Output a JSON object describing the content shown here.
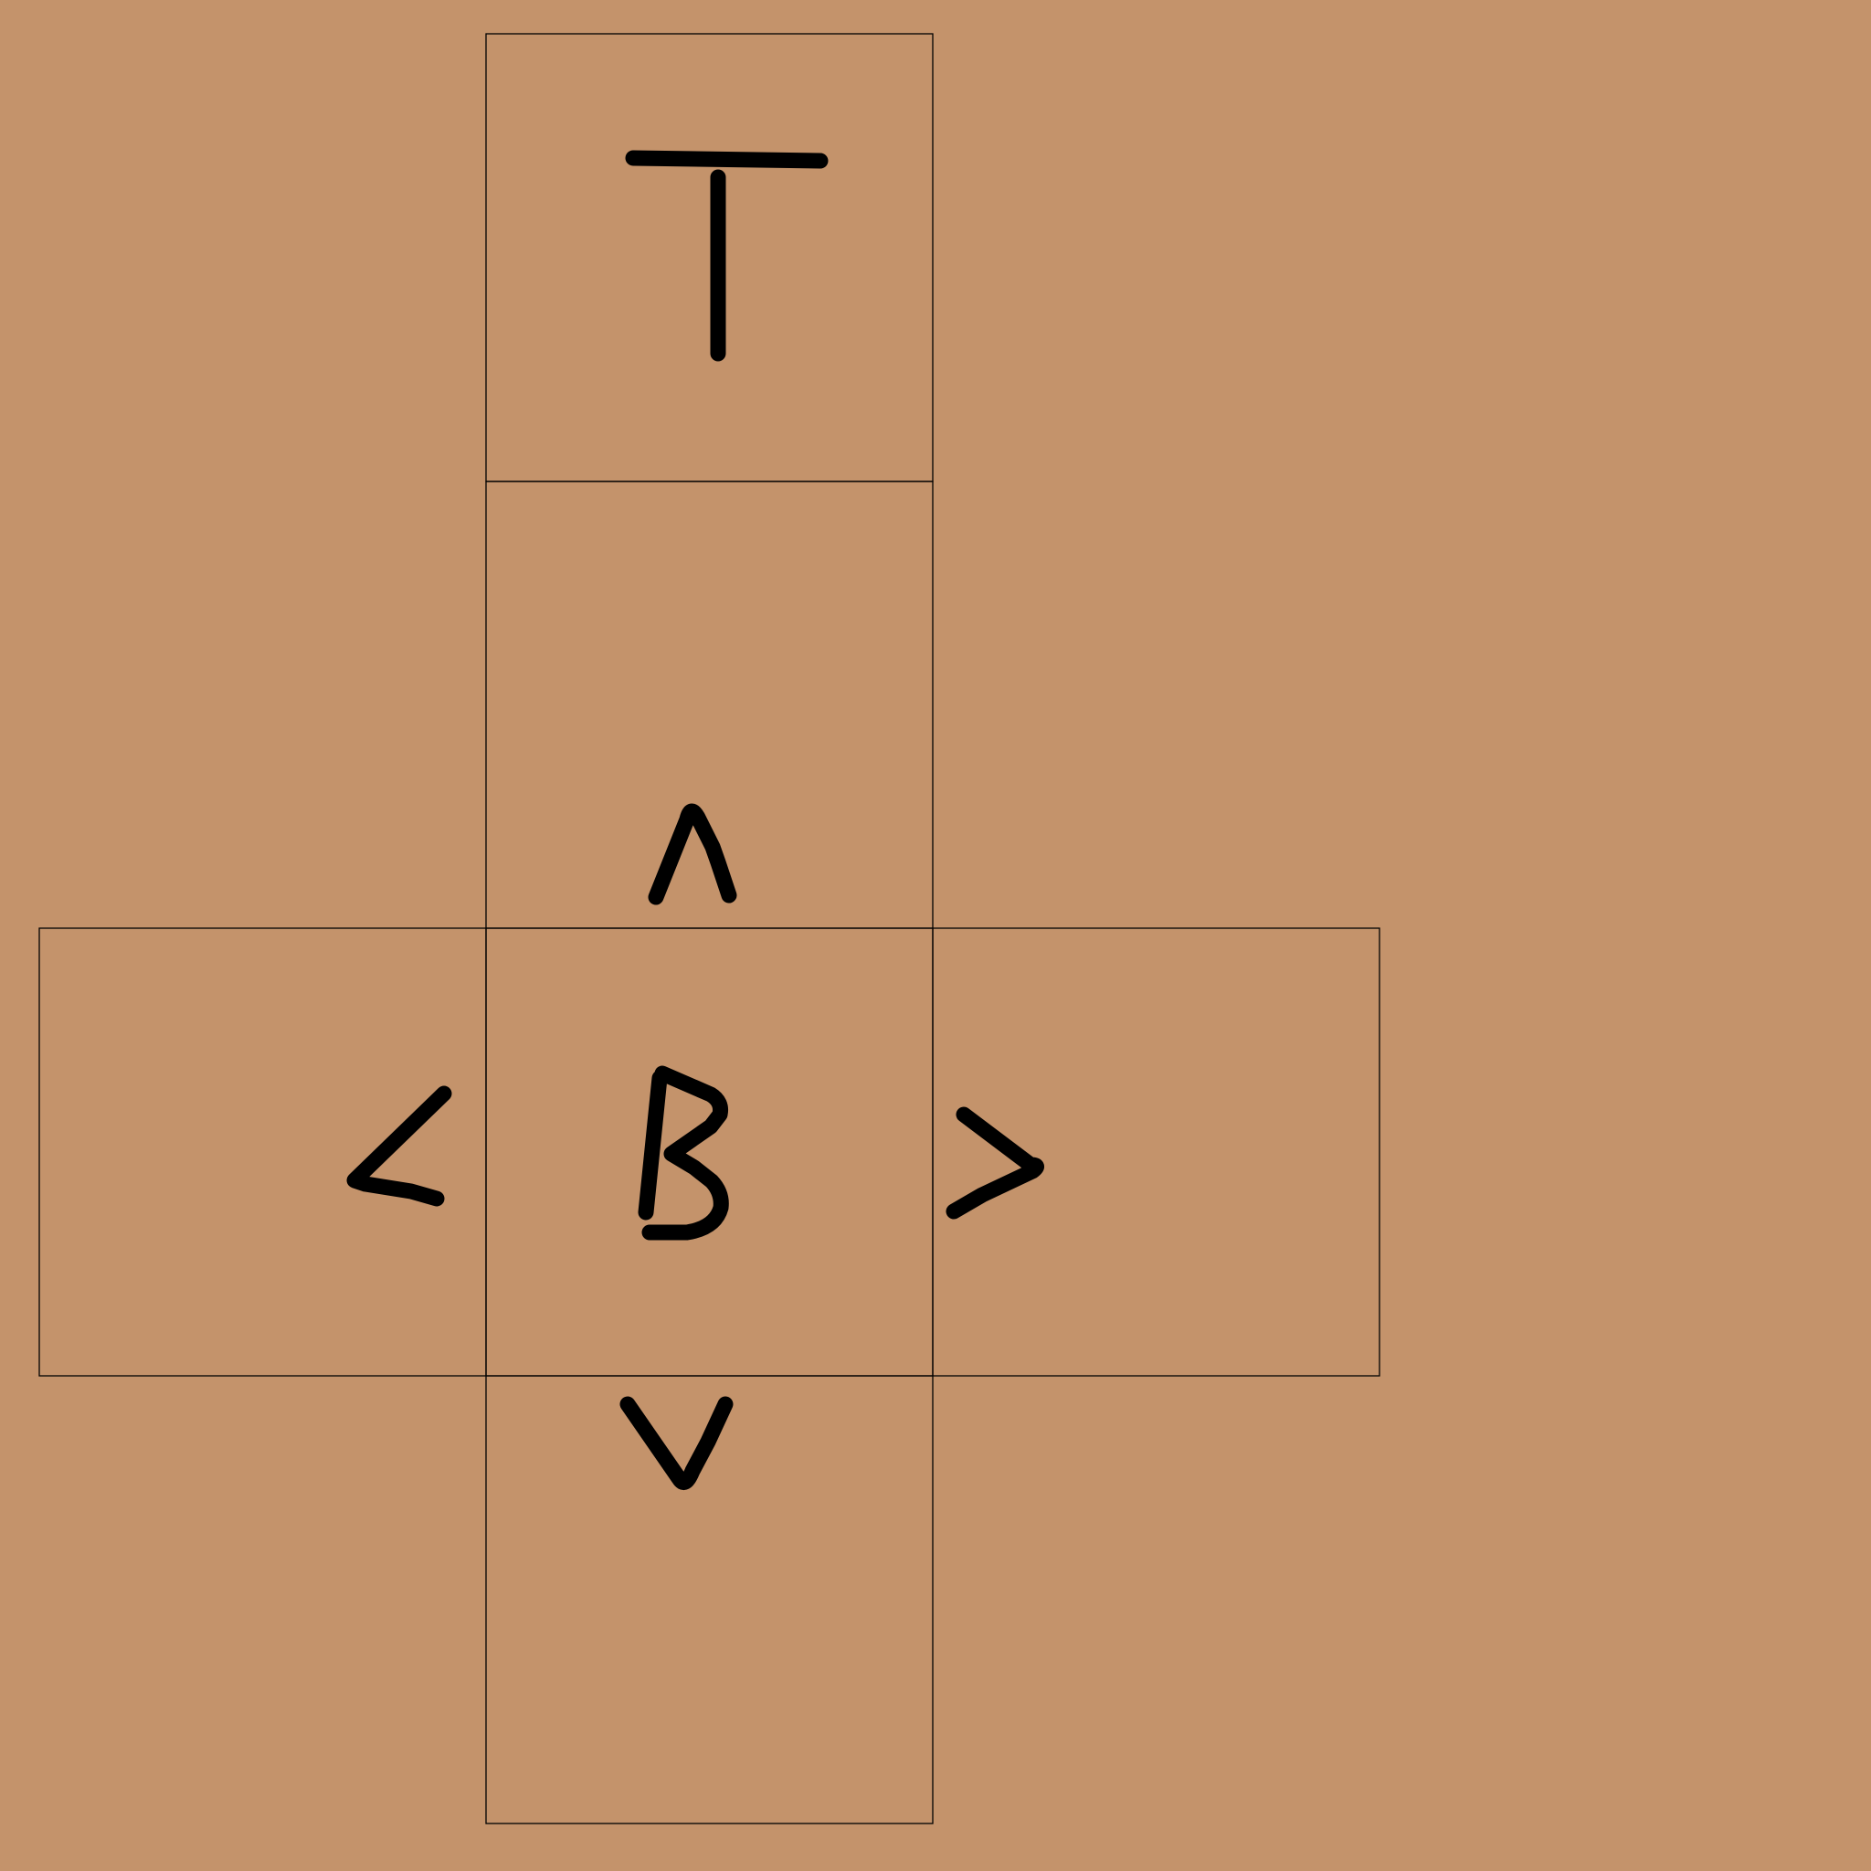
{
  "background_color": "#c4936b",
  "line_color": "#000000",
  "faces": [
    {
      "id": "top",
      "label": "T",
      "icon": "letter-t-icon"
    },
    {
      "id": "up",
      "label": "^",
      "icon": "up-caret-icon"
    },
    {
      "id": "left",
      "label": "<",
      "icon": "left-angle-icon"
    },
    {
      "id": "bottom",
      "label": "B",
      "icon": "letter-b-icon"
    },
    {
      "id": "right",
      "label": ">",
      "icon": "right-angle-icon"
    },
    {
      "id": "down",
      "label": "v",
      "icon": "down-v-icon"
    }
  ]
}
